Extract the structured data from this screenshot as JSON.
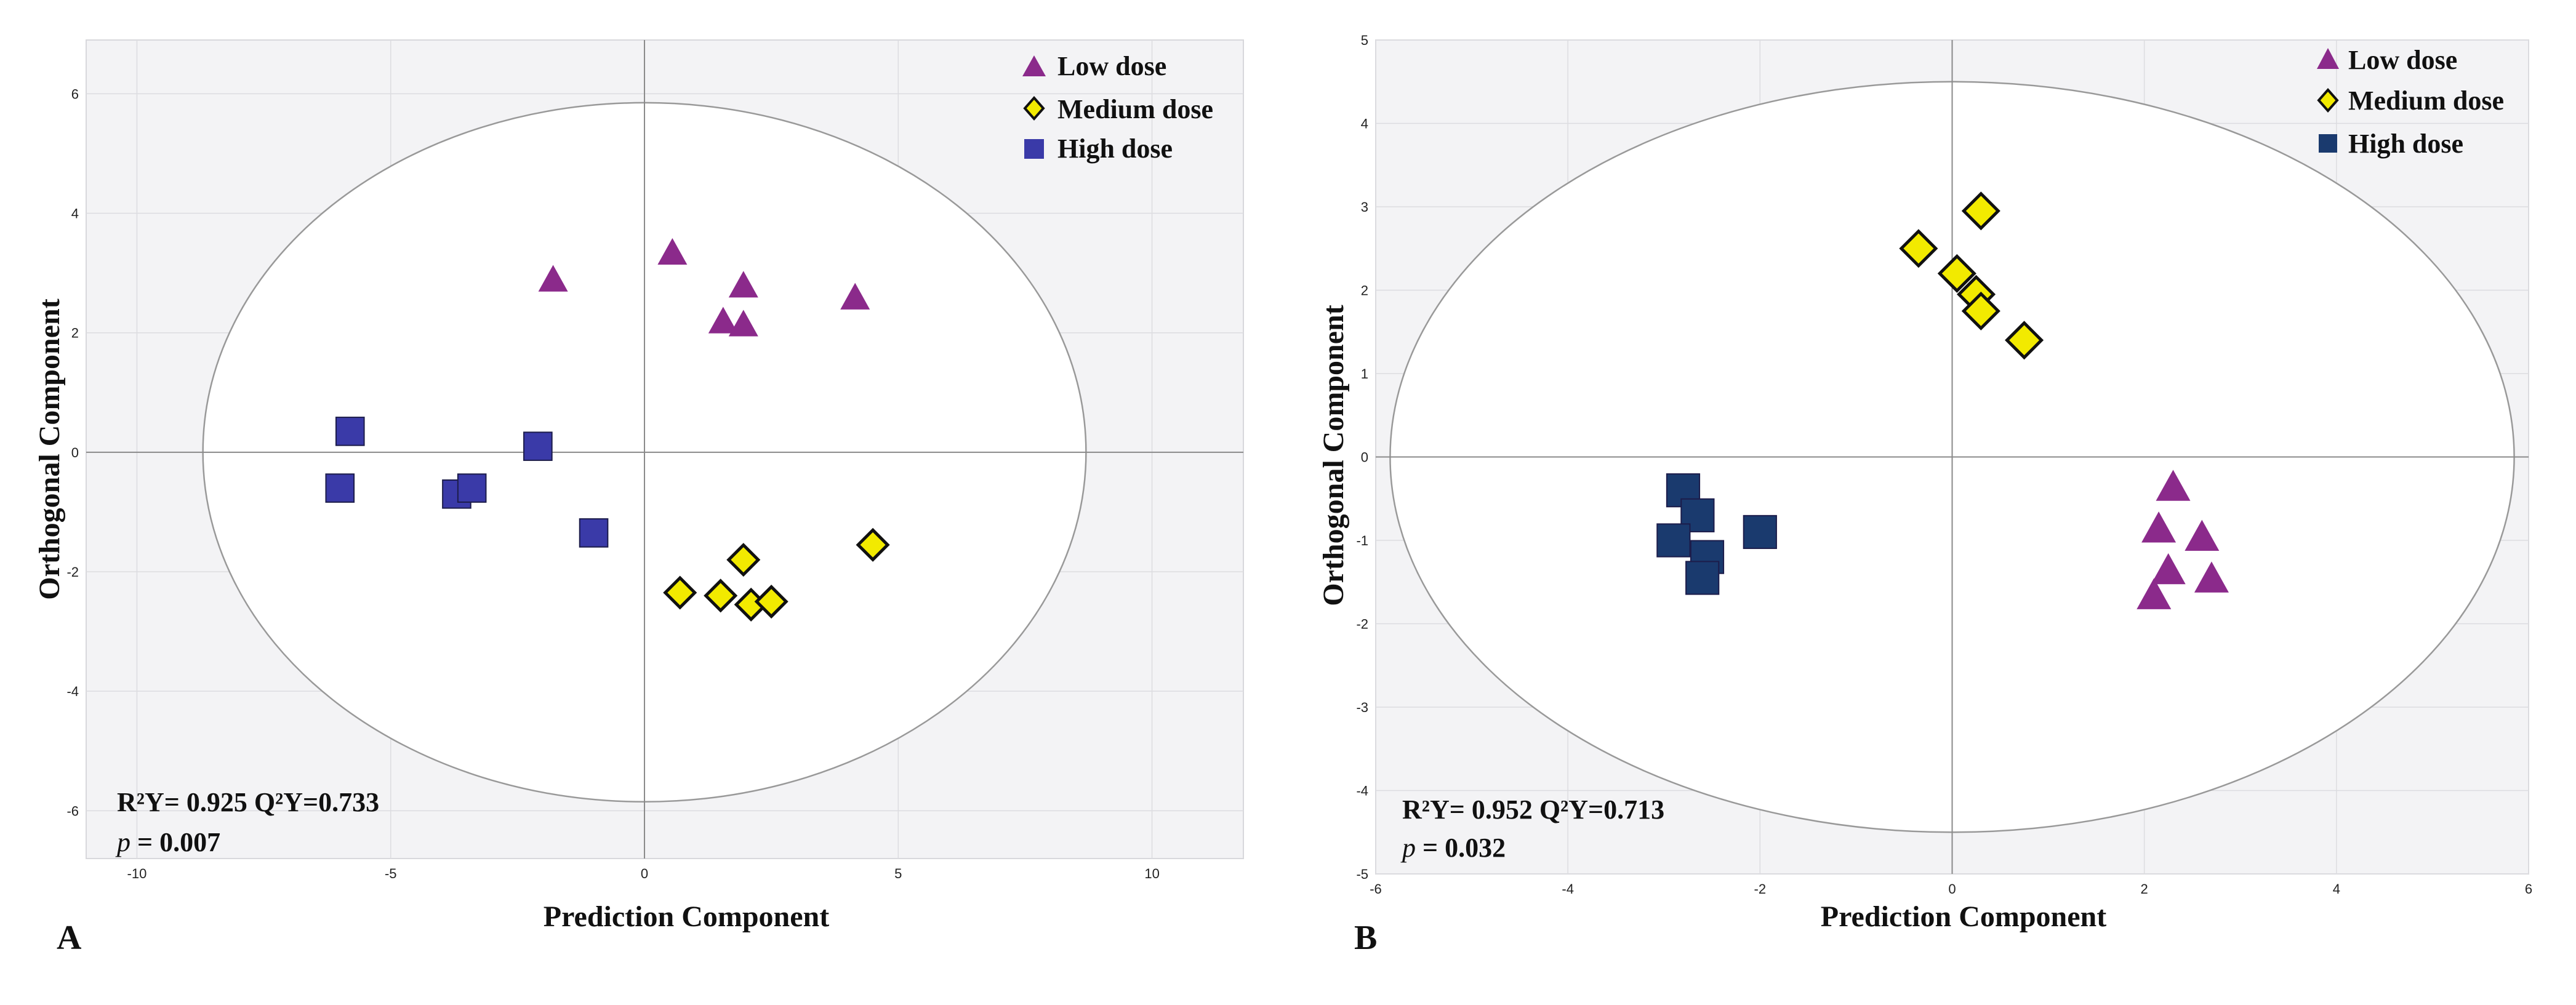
{
  "colors": {
    "low_dose_A": "#8b2a8b",
    "low_dose_B": "#8b2a8b",
    "medium_dose": "#f2ea00",
    "high_dose_A": "#3a3aa8",
    "high_dose_B": "#1a3a6e",
    "plot_bg": "#f3f3f5",
    "ellipse_fill": "#ffffff"
  },
  "chart_data": [
    {
      "type": "scatter",
      "panel_label": "A",
      "xlabel": "Prediction Component",
      "ylabel": "Orthogonal Component",
      "xlim": [
        -11,
        11.8
      ],
      "ylim": [
        -6.8,
        6.9
      ],
      "xticks": [
        -10,
        -5,
        0,
        5,
        10
      ],
      "yticks": [
        -6,
        -4,
        -2,
        0,
        2,
        4,
        6
      ],
      "grid": true,
      "legend_position": "top-right",
      "ellipse": {
        "rx": 8.7,
        "ry": 5.85
      },
      "stats": {
        "line1": "R²Y= 0.925 Q²Y=0.733",
        "p_label": "p",
        "p_value": " = 0.007"
      },
      "series": [
        {
          "name": "Low dose",
          "marker": "triangle",
          "x": [
            -1.8,
            0.55,
            1.95,
            1.55,
            1.95,
            4.15
          ],
          "y": [
            2.9,
            3.35,
            2.8,
            2.2,
            2.15,
            2.6
          ]
        },
        {
          "name": "Medium dose",
          "marker": "diamond",
          "x": [
            0.7,
            1.5,
            1.95,
            2.1,
            2.5,
            4.5
          ],
          "y": [
            -2.35,
            -2.4,
            -1.8,
            -2.55,
            -2.5,
            -1.55
          ]
        },
        {
          "name": "High dose",
          "marker": "square",
          "x": [
            -5.8,
            -6.0,
            -3.7,
            -3.4,
            -2.1,
            -1.0
          ],
          "y": [
            0.35,
            -0.6,
            -0.7,
            -0.6,
            0.1,
            -1.35
          ]
        }
      ]
    },
    {
      "type": "scatter",
      "panel_label": "B",
      "xlabel": "Prediction Component",
      "ylabel": "Orthogonal Component",
      "xlim": [
        -6,
        6
      ],
      "ylim": [
        -5,
        5
      ],
      "xticks": [
        -6,
        -4,
        -2,
        0,
        2,
        4,
        6
      ],
      "yticks": [
        -5,
        -4,
        -3,
        -2,
        -1,
        0,
        1,
        2,
        3,
        4,
        5
      ],
      "grid": true,
      "legend_position": "top-right",
      "ellipse": {
        "rx": 5.85,
        "ry": 4.5
      },
      "stats": {
        "line1": "R²Y= 0.952 Q²Y=0.713",
        "p_label": "p",
        "p_value": " = 0.032"
      },
      "series": [
        {
          "name": "Low dose",
          "marker": "triangle",
          "x": [
            2.3,
            2.15,
            2.6,
            2.25,
            2.7,
            2.1
          ],
          "y": [
            -0.35,
            -0.85,
            -0.95,
            -1.35,
            -1.45,
            -1.65
          ]
        },
        {
          "name": "Medium dose",
          "marker": "diamond",
          "x": [
            -0.35,
            0.3,
            0.05,
            0.25,
            0.3,
            0.75
          ],
          "y": [
            2.5,
            2.95,
            2.2,
            1.95,
            1.75,
            1.4
          ]
        },
        {
          "name": "High dose",
          "marker": "square",
          "x": [
            -2.8,
            -2.65,
            -2.9,
            -2.55,
            -2.6,
            -2.0
          ],
          "y": [
            -0.4,
            -0.7,
            -1.0,
            -1.2,
            -1.45,
            -0.9
          ]
        }
      ]
    }
  ]
}
